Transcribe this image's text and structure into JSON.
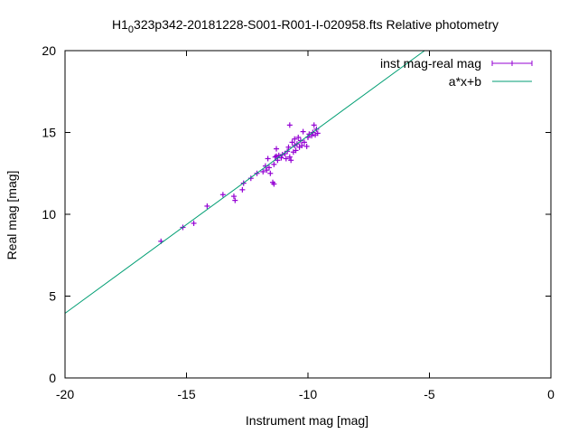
{
  "chart_data": {
    "type": "scatter",
    "title_main": "H1",
    "title_sub": "0",
    "title_rest": "323p342-20181228-S001-R001-I-020958.fts Relative photometry",
    "xlabel": "Instrument mag [mag]",
    "ylabel": "Real mag [mag]",
    "xlim": [
      -20,
      0
    ],
    "ylim": [
      0,
      20
    ],
    "xticks": [
      "-20",
      "-15",
      "-10",
      "-5",
      "0"
    ],
    "xtick_values": [
      -20,
      -15,
      -10,
      -5,
      0
    ],
    "yticks": [
      "0",
      "5",
      "10",
      "15",
      "20"
    ],
    "ytick_values": [
      0,
      5,
      10,
      15,
      20
    ],
    "grid": false,
    "legend_position": "top-right",
    "series": [
      {
        "name": "inst mag-real mag",
        "kind": "points-with-errorbars",
        "color": "#9400d3",
        "points": [
          [
            -16.05,
            8.35
          ],
          [
            -15.15,
            9.2
          ],
          [
            -14.7,
            9.45
          ],
          [
            -14.15,
            10.5
          ],
          [
            -13.5,
            11.2
          ],
          [
            -13.05,
            11.1
          ],
          [
            -13.0,
            10.85
          ],
          [
            -12.7,
            11.5
          ],
          [
            -12.65,
            11.9
          ],
          [
            -12.35,
            12.2
          ],
          [
            -12.1,
            12.5
          ],
          [
            -11.85,
            12.6
          ],
          [
            -11.75,
            12.95
          ],
          [
            -11.7,
            12.7
          ],
          [
            -11.65,
            13.4
          ],
          [
            -11.6,
            12.85
          ],
          [
            -11.55,
            12.5
          ],
          [
            -11.45,
            11.95
          ],
          [
            -11.4,
            11.85
          ],
          [
            -11.4,
            13.05
          ],
          [
            -11.35,
            13.5
          ],
          [
            -11.3,
            13.55
          ],
          [
            -11.3,
            14.0
          ],
          [
            -11.25,
            13.3
          ],
          [
            -11.2,
            13.6
          ],
          [
            -11.1,
            13.45
          ],
          [
            -11.05,
            13.65
          ],
          [
            -10.95,
            13.7
          ],
          [
            -10.9,
            13.4
          ],
          [
            -10.85,
            13.85
          ],
          [
            -10.8,
            14.1
          ],
          [
            -10.75,
            15.45
          ],
          [
            -10.75,
            13.5
          ],
          [
            -10.7,
            13.3
          ],
          [
            -10.65,
            14.4
          ],
          [
            -10.6,
            13.8
          ],
          [
            -10.55,
            14.2
          ],
          [
            -10.55,
            14.6
          ],
          [
            -10.5,
            13.9
          ],
          [
            -10.45,
            14.3
          ],
          [
            -10.4,
            14.7
          ],
          [
            -10.35,
            14.1
          ],
          [
            -10.3,
            14.5
          ],
          [
            -10.25,
            14.2
          ],
          [
            -10.2,
            15.05
          ],
          [
            -10.15,
            14.4
          ],
          [
            -10.05,
            14.15
          ],
          [
            -10.0,
            14.7
          ],
          [
            -9.95,
            14.9
          ],
          [
            -9.85,
            14.8
          ],
          [
            -9.8,
            15.0
          ],
          [
            -9.75,
            15.45
          ],
          [
            -9.7,
            14.85
          ],
          [
            -9.65,
            15.2
          ],
          [
            -9.6,
            14.95
          ]
        ]
      },
      {
        "name": "a*x+b",
        "kind": "line",
        "color": "#009e73",
        "line": [
          [
            -20,
            3.95
          ],
          [
            -5.2,
            20
          ]
        ]
      }
    ]
  }
}
